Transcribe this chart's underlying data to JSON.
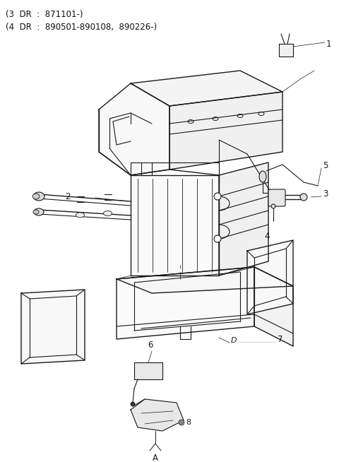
{
  "title_line1": "(3  DR  :  871101-)",
  "title_line2": "(4  DR  :  890501-890108,  890226-)",
  "bg_color": "#ffffff",
  "line_color": "#1a1a1a",
  "fig_width": 4.8,
  "fig_height": 6.54,
  "dpi": 100
}
